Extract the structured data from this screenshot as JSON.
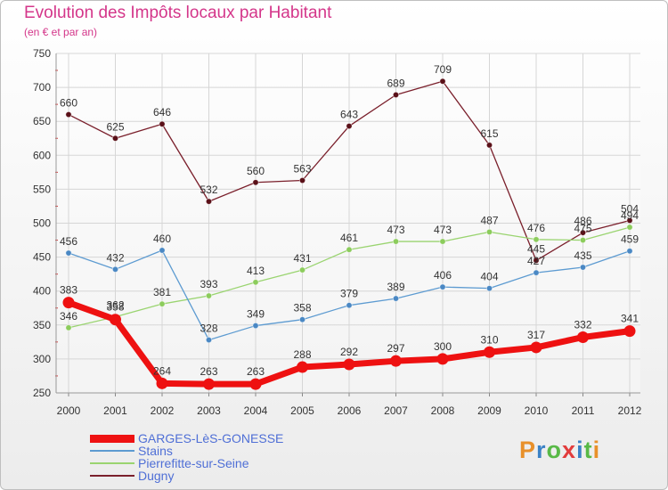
{
  "header": {
    "title": "Evolution des Impôts locaux par Habitant",
    "subtitle": "(en € et par an)"
  },
  "colors": {
    "title": "#d4368a",
    "legend_text": "#4f6fd6"
  },
  "logo": {
    "letters": [
      "P",
      "r",
      "o",
      "x",
      "i",
      "t",
      "i"
    ],
    "colors": [
      "#e8902a",
      "#3b82c6",
      "#58b947",
      "#e23c3c",
      "#3b82c6",
      "#58b947",
      "#e8902a"
    ]
  },
  "chart_data": {
    "type": "line",
    "title": "Evolution des Impôts locaux par Habitant",
    "subtitle": "(en € et par an)",
    "xlabel": "",
    "ylabel": "",
    "categories": [
      "2000",
      "2001",
      "2002",
      "2003",
      "2004",
      "2005",
      "2006",
      "2007",
      "2008",
      "2009",
      "2010",
      "2011",
      "2012"
    ],
    "ylim": [
      250,
      750
    ],
    "yticks": [
      250,
      300,
      350,
      400,
      450,
      500,
      550,
      600,
      650,
      700,
      750
    ],
    "grid": true,
    "legend_position": "bottom-left",
    "series": [
      {
        "name": "Dugny",
        "color": "#7a1f2b",
        "marker": "#5a1018",
        "values": [
          660,
          625,
          646,
          532,
          560,
          563,
          643,
          689,
          709,
          615,
          445,
          486,
          504
        ]
      },
      {
        "name": "Pierrefitte-sur-Seine",
        "color": "#9ad470",
        "marker": "#8ccc5c",
        "values": [
          346,
          362,
          381,
          393,
          413,
          431,
          461,
          473,
          473,
          487,
          476,
          475,
          494
        ]
      },
      {
        "name": "Stains",
        "color": "#5d9bd1",
        "marker": "#4a88c4",
        "values": [
          456,
          432,
          460,
          328,
          349,
          358,
          379,
          389,
          406,
          404,
          427,
          435,
          459
        ]
      },
      {
        "name": "GARGES-LèS-GONESSE",
        "color": "#ee1111",
        "marker": "#ee1111",
        "values": [
          383,
          358,
          264,
          263,
          263,
          288,
          292,
          297,
          300,
          310,
          317,
          332,
          341
        ]
      }
    ],
    "legend": [
      "GARGES-LèS-GONESSE",
      "Stains",
      "Pierrefitte-sur-Seine",
      "Dugny"
    ]
  }
}
